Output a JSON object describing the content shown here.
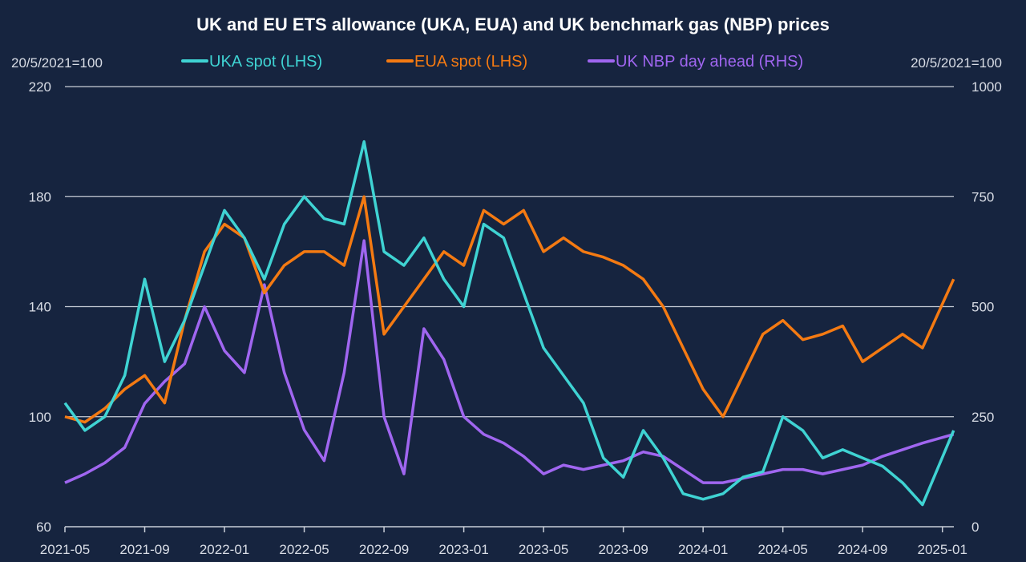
{
  "chart_data": {
    "type": "line",
    "title": "UK and EU ETS allowance (UKA, EUA) and UK benchmark gas (NBP) prices",
    "ylabel_left": "20/5/2021=100",
    "ylabel_right": "20/5/2021=100",
    "ylim_left": [
      60,
      220
    ],
    "ylim_right": [
      0,
      1000
    ],
    "yticks_left": [
      "60",
      "100",
      "140",
      "180",
      "220"
    ],
    "yticks_right": [
      "0",
      "250",
      "500",
      "750",
      "1000"
    ],
    "xticks": [
      "2021-05",
      "2021-09",
      "2022-01",
      "2022-05",
      "2022-09",
      "2023-01",
      "2023-05",
      "2023-09",
      "2024-01",
      "2024-05",
      "2024-09",
      "2025-01"
    ],
    "grid": "horizontal",
    "legend": "top",
    "x": [
      "2021-05",
      "2021-06",
      "2021-07",
      "2021-08",
      "2021-09",
      "2021-10",
      "2021-11",
      "2021-12",
      "2022-01",
      "2022-02",
      "2022-03",
      "2022-04",
      "2022-05",
      "2022-06",
      "2022-07",
      "2022-08",
      "2022-09",
      "2022-10",
      "2022-11",
      "2022-12",
      "2023-01",
      "2023-02",
      "2023-03",
      "2023-04",
      "2023-05",
      "2023-06",
      "2023-07",
      "2023-08",
      "2023-09",
      "2023-10",
      "2023-11",
      "2023-12",
      "2024-01",
      "2024-02",
      "2024-03",
      "2024-04",
      "2024-05",
      "2024-06",
      "2024-07",
      "2024-08",
      "2024-09",
      "2024-10",
      "2024-11",
      "2024-12",
      "2025-01"
    ],
    "series": [
      {
        "name": "UKA spot (LHS)",
        "axis": "left",
        "color": "#3fd3d3",
        "values": [
          105,
          95,
          100,
          115,
          150,
          120,
          135,
          155,
          175,
          165,
          150,
          170,
          180,
          172,
          170,
          200,
          160,
          155,
          165,
          150,
          140,
          170,
          165,
          145,
          125,
          115,
          105,
          85,
          78,
          95,
          85,
          72,
          70,
          72,
          78,
          80,
          100,
          95,
          85,
          88,
          85,
          82,
          76,
          68,
          95
        ]
      },
      {
        "name": "EUA spot (LHS)",
        "axis": "left",
        "color": "#f47a12",
        "values": [
          100,
          98,
          103,
          110,
          115,
          105,
          135,
          160,
          170,
          165,
          145,
          155,
          160,
          160,
          155,
          180,
          130,
          140,
          150,
          160,
          155,
          175,
          170,
          175,
          160,
          165,
          160,
          158,
          155,
          150,
          140,
          125,
          110,
          100,
          115,
          130,
          135,
          128,
          130,
          133,
          120,
          125,
          130,
          125,
          150
        ]
      },
      {
        "name": "UK NBP day ahead (RHS)",
        "axis": "right",
        "color": "#a066f0",
        "values": [
          100,
          120,
          145,
          180,
          280,
          330,
          370,
          500,
          400,
          350,
          550,
          350,
          220,
          150,
          350,
          650,
          250,
          120,
          450,
          380,
          250,
          210,
          190,
          160,
          120,
          140,
          130,
          140,
          150,
          170,
          160,
          130,
          100,
          100,
          110,
          120,
          130,
          130,
          120,
          130,
          140,
          160,
          175,
          190,
          210
        ]
      }
    ]
  }
}
